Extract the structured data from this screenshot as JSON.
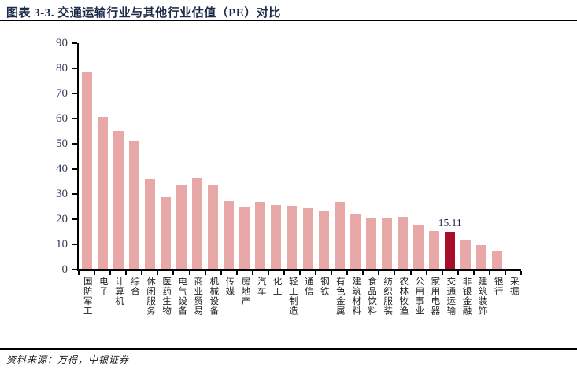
{
  "title": "图表 3-3. 交通运输行业与其他行业估值（PE）对比",
  "footer": {
    "source_label": "资料来源：万得，中银证券"
  },
  "chart_data": {
    "type": "bar",
    "title": "交通运输行业与其他行业估值（PE）对比",
    "categories": [
      "国防军工",
      "电子",
      "计算机",
      "综合",
      "休闲服务",
      "医药生物",
      "电气设备",
      "商业贸易",
      "机械设备",
      "传媒",
      "房地产",
      "汽车",
      "化工",
      "轻工制造",
      "通信",
      "钢铁",
      "有色金属",
      "建筑材料",
      "食品饮料",
      "纺织服装",
      "农林牧渔",
      "公用事业",
      "家用电器",
      "交通运输",
      "非银金融",
      "建筑装饰",
      "银行",
      "采掘"
    ],
    "values": [
      78.4,
      60.5,
      55.0,
      50.8,
      35.9,
      28.7,
      33.3,
      36.6,
      33.5,
      27.1,
      24.8,
      26.9,
      25.6,
      25.4,
      24.3,
      23.0,
      26.9,
      22.3,
      20.3,
      20.5,
      21.0,
      17.8,
      15.2,
      15.11,
      11.5,
      9.8,
      7.3,
      0
    ],
    "ylim": [
      0,
      90
    ],
    "ytick_step": 10,
    "ytick_labels": [
      "0",
      "10",
      "20",
      "30",
      "40",
      "50",
      "60",
      "70",
      "80",
      "90"
    ],
    "grid": false,
    "legend": "none",
    "bar_color": "#E8A8A8",
    "highlight": {
      "index": 23,
      "color": "#A80E29",
      "label": "15.11"
    },
    "axis_color": "#000000",
    "tick_label_color": "#2e3d58"
  }
}
